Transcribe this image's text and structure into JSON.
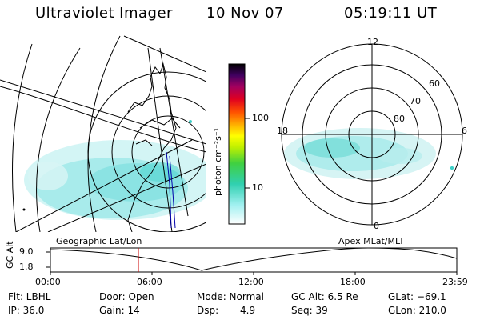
{
  "header": {
    "title": "Ultraviolet Imager",
    "date": "10 Nov 07",
    "time": "05:19:11 UT"
  },
  "colorbar": {
    "unit_label": "photon cm⁻²s⁻¹",
    "ticks": [
      "100",
      "10"
    ]
  },
  "polar_plot": {
    "mlt_labels": [
      "12",
      "18",
      "6",
      "0"
    ],
    "lat_labels": [
      "60",
      "70",
      "80"
    ]
  },
  "panels": {
    "left_label": "Geographic Lat/Lon",
    "right_label": "Apex MLat/MLT"
  },
  "altitude_plot": {
    "ylabel": "GC Alt",
    "y_ticks": [
      "9.0",
      "1.8"
    ],
    "x_ticks": [
      "00:00",
      "06:00",
      "12:00",
      "18:00",
      "23:59"
    ]
  },
  "status": {
    "flt": "Flt: LBHL",
    "door": "Door: Open",
    "mode": "Mode: Normal",
    "gc_alt": "GC Alt: 6.5 Re",
    "glat": "GLat: −69.1",
    "ip": "IP: 36.0",
    "gain": "Gain: 14",
    "dsp_label": "Dsp:",
    "dsp_value": "4.9",
    "seq": "Seq: 39",
    "glon": "GLon: 210.0"
  },
  "colors": {
    "aurora": "#8fe6e6",
    "aurora_strong": "#3fd0c8",
    "marker": "#cc0000",
    "track": "#0000aa"
  }
}
